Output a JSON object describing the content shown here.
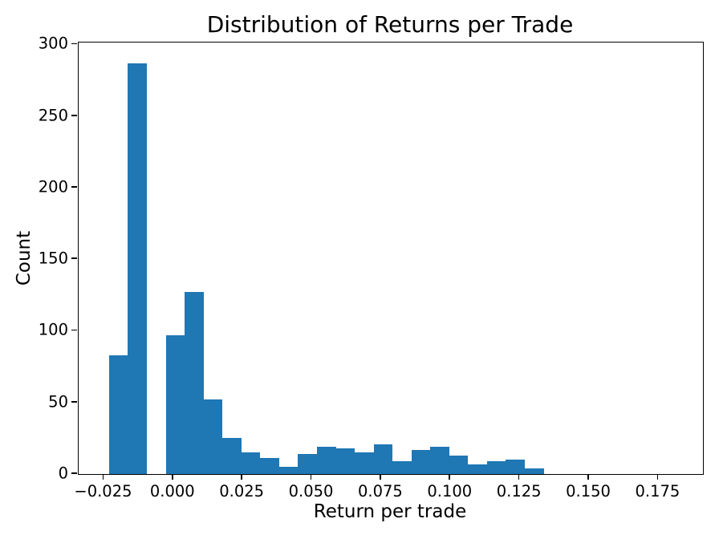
{
  "page": {
    "background_color": "#ffffff",
    "text_color": "#000000"
  },
  "chart_data": {
    "type": "bar",
    "subtype": "histogram",
    "title": "Distribution of Returns per Trade",
    "xlabel": "Return per trade",
    "ylabel": "Count",
    "bar_color": "#1f77b4",
    "axis_color": "#000000",
    "grid": false,
    "legend": null,
    "bin_start": -0.02312,
    "bin_width": 0.006816,
    "counts": [
      83,
      287,
      0,
      97,
      127,
      52,
      25,
      15,
      11,
      5,
      14,
      19,
      18,
      15,
      21,
      9,
      17,
      19,
      13,
      7,
      9,
      10,
      4
    ],
    "xlim": [
      -0.0341,
      0.1911
    ],
    "ylim": [
      0,
      301.4
    ],
    "x_ticks": [
      {
        "value": -0.025,
        "label": "−0.025"
      },
      {
        "value": 0.0,
        "label": "0.000"
      },
      {
        "value": 0.025,
        "label": "0.025"
      },
      {
        "value": 0.05,
        "label": "0.050"
      },
      {
        "value": 0.075,
        "label": "0.075"
      },
      {
        "value": 0.1,
        "label": "0.100"
      },
      {
        "value": 0.125,
        "label": "0.125"
      },
      {
        "value": 0.15,
        "label": "0.150"
      },
      {
        "value": 0.175,
        "label": "0.175"
      }
    ],
    "y_ticks": [
      {
        "value": 0,
        "label": "0"
      },
      {
        "value": 50,
        "label": "50"
      },
      {
        "value": 100,
        "label": "100"
      },
      {
        "value": 150,
        "label": "150"
      },
      {
        "value": 200,
        "label": "200"
      },
      {
        "value": 250,
        "label": "250"
      },
      {
        "value": 300,
        "label": "300"
      }
    ]
  }
}
